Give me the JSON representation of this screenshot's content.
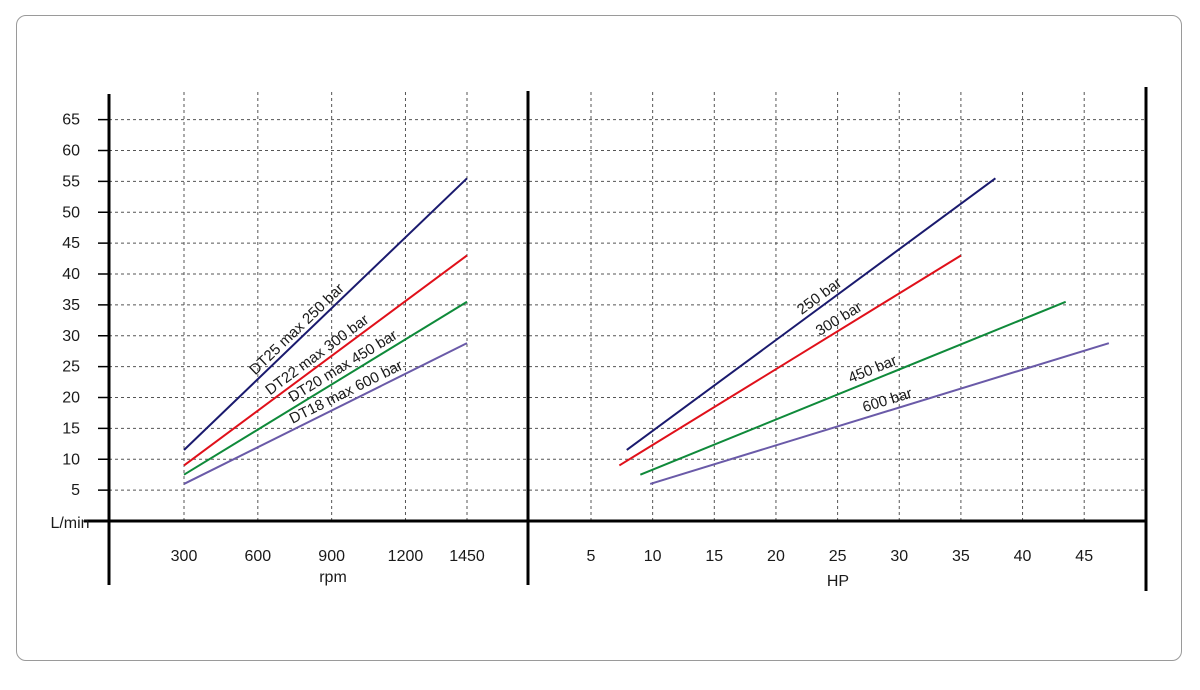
{
  "chart_data": [
    {
      "type": "line",
      "panel": "left",
      "xlabel": "rpm",
      "ylabel": "L/min",
      "x_ticks": [
        "300",
        "600",
        "900",
        "1200",
        "1450"
      ],
      "x_values": [
        300,
        600,
        900,
        1200,
        1450
      ],
      "y_ticks": [
        "5",
        "10",
        "15",
        "20",
        "25",
        "30",
        "35",
        "40",
        "45",
        "50",
        "55",
        "60",
        "65"
      ],
      "ylim": [
        0,
        65
      ],
      "grid": true,
      "series": [
        {
          "name": "DT25 max 250 bar",
          "color": "#1a1a6e",
          "x": [
            300,
            1450
          ],
          "y": [
            11.5,
            55.5
          ]
        },
        {
          "name": "DT22 max 300 bar",
          "color": "#e0101a",
          "x": [
            300,
            1450
          ],
          "y": [
            9,
            43
          ]
        },
        {
          "name": "DT20 max 450 bar",
          "color": "#0f8a3a",
          "x": [
            300,
            1450
          ],
          "y": [
            7.5,
            35.5
          ]
        },
        {
          "name": "DT18 max 600 bar",
          "color": "#6a5aa8",
          "x": [
            300,
            1450
          ],
          "y": [
            6,
            28.8
          ]
        }
      ]
    },
    {
      "type": "line",
      "panel": "right",
      "xlabel": "HP",
      "ylabel": "",
      "x_ticks": [
        "5",
        "10",
        "15",
        "20",
        "25",
        "30",
        "35",
        "40",
        "45"
      ],
      "x_values": [
        5,
        10,
        15,
        20,
        25,
        30,
        35,
        40,
        45
      ],
      "ylim": [
        0,
        65
      ],
      "grid": true,
      "series": [
        {
          "name": "250 bar",
          "color": "#1a1a6e",
          "x": [
            7.9,
            37.8
          ],
          "y": [
            11.5,
            55.5
          ]
        },
        {
          "name": "300 bar",
          "color": "#e0101a",
          "x": [
            7.3,
            35.0
          ],
          "y": [
            9,
            43
          ]
        },
        {
          "name": "450 bar",
          "color": "#0f8a3a",
          "x": [
            9.0,
            43.5
          ],
          "y": [
            7.5,
            35.5
          ]
        },
        {
          "name": "600 bar",
          "color": "#6a5aa8",
          "x": [
            9.8,
            47.0
          ],
          "y": [
            6,
            28.8
          ]
        }
      ]
    }
  ]
}
